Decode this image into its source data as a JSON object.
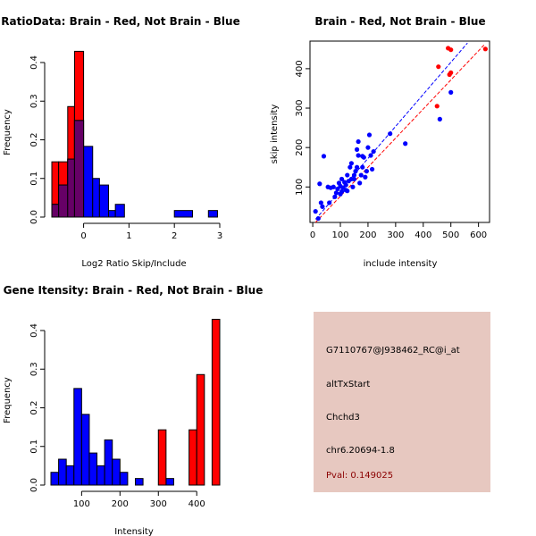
{
  "colors": {
    "red": "#ff0000",
    "blue": "#0000ff",
    "purple": "#660066",
    "panel": "#e7c8c0",
    "pval": "#8b0000"
  },
  "chart_data": [
    {
      "type": "histogram",
      "title": "RatioData: Brain - Red, Not Brain - Blue",
      "xlabel": "Log2 Ratio Skip/Include",
      "ylabel": "Frequency",
      "xlim": [
        -0.72,
        3.0
      ],
      "ylim": [
        0,
        0.43
      ],
      "xticks": [
        0,
        1,
        2,
        3
      ],
      "yticks": [
        0.0,
        0.1,
        0.2,
        0.3,
        0.4
      ],
      "series": [
        {
          "name": "Brain",
          "color": "red",
          "bins": [
            {
              "x0": -0.7,
              "x1": -0.55,
              "value": 0.143
            },
            {
              "x0": -0.55,
              "x1": -0.35,
              "value": 0.143
            },
            {
              "x0": -0.35,
              "x1": -0.2,
              "value": 0.286
            },
            {
              "x0": -0.2,
              "x1": 0.0,
              "value": 0.429
            }
          ]
        },
        {
          "name": "Not Brain",
          "color": "blue",
          "bins": [
            {
              "x0": -0.7,
              "x1": -0.55,
              "value": 0.033
            },
            {
              "x0": -0.55,
              "x1": -0.35,
              "value": 0.083
            },
            {
              "x0": -0.35,
              "x1": -0.2,
              "value": 0.15
            },
            {
              "x0": -0.2,
              "x1": 0.0,
              "value": 0.25
            },
            {
              "x0": 0.0,
              "x1": 0.2,
              "value": 0.183
            },
            {
              "x0": 0.2,
              "x1": 0.35,
              "value": 0.1
            },
            {
              "x0": 0.35,
              "x1": 0.55,
              "value": 0.083
            },
            {
              "x0": 0.55,
              "x1": 0.7,
              "value": 0.017
            },
            {
              "x0": 0.7,
              "x1": 0.9,
              "value": 0.033
            },
            {
              "x0": 2.0,
              "x1": 2.4,
              "value": 0.017
            },
            {
              "x0": 2.75,
              "x1": 2.95,
              "value": 0.017
            }
          ]
        }
      ]
    },
    {
      "type": "scatter",
      "title": "Brain - Red, Not Brain - Blue",
      "xlabel": "include intensity",
      "ylabel": "skip intensity",
      "xlim": [
        -10,
        640
      ],
      "ylim": [
        10,
        470
      ],
      "xticks": [
        0,
        100,
        200,
        300,
        400,
        500,
        600
      ],
      "yticks": [
        100,
        200,
        300,
        400
      ],
      "series": [
        {
          "name": "Not Brain",
          "color": "blue",
          "points": [
            [
              10,
              38
            ],
            [
              25,
              108
            ],
            [
              30,
              60
            ],
            [
              35,
              50
            ],
            [
              40,
              178
            ],
            [
              55,
              100
            ],
            [
              60,
              60
            ],
            [
              65,
              98
            ],
            [
              75,
              100
            ],
            [
              80,
              75
            ],
            [
              85,
              85
            ],
            [
              90,
              95
            ],
            [
              95,
              110
            ],
            [
              100,
              82
            ],
            [
              100,
              102
            ],
            [
              105,
              120
            ],
            [
              110,
              98
            ],
            [
              115,
              112
            ],
            [
              120,
              105
            ],
            [
              125,
              90
            ],
            [
              125,
              130
            ],
            [
              130,
              115
            ],
            [
              135,
              150
            ],
            [
              140,
              160
            ],
            [
              145,
              100
            ],
            [
              150,
              120
            ],
            [
              150,
              130
            ],
            [
              155,
              140
            ],
            [
              160,
              195
            ],
            [
              165,
              180
            ],
            [
              165,
              215
            ],
            [
              170,
              110
            ],
            [
              175,
              130
            ],
            [
              180,
              150
            ],
            [
              185,
              175
            ],
            [
              190,
              125
            ],
            [
              195,
              140
            ],
            [
              200,
              200
            ],
            [
              205,
              232
            ],
            [
              210,
              180
            ],
            [
              215,
              145
            ],
            [
              220,
              190
            ],
            [
              280,
              235
            ],
            [
              335,
              210
            ],
            [
              460,
              272
            ],
            [
              500,
              340
            ],
            [
              20,
              20
            ],
            [
              105,
              88
            ],
            [
              140,
              120
            ],
            [
              160,
              150
            ],
            [
              180,
              178
            ],
            [
              120,
              92
            ]
          ]
        },
        {
          "name": "Brain",
          "color": "red",
          "points": [
            [
              450,
              305
            ],
            [
              455,
              405
            ],
            [
              490,
              452
            ],
            [
              495,
              385
            ],
            [
              500,
              390
            ],
            [
              500,
              448
            ],
            [
              625,
              450
            ]
          ]
        }
      ],
      "fit_lines": [
        {
          "series": "Not Brain",
          "color": "blue",
          "x": [
            10,
            560
          ],
          "y": [
            18,
            465
          ]
        },
        {
          "series": "Brain",
          "color": "red",
          "x": [
            10,
            620
          ],
          "y": [
            10,
            460
          ]
        }
      ]
    },
    {
      "type": "histogram",
      "title": "Gene Itensity: Brain - Red, Not Brain - Blue",
      "xlabel": "Intensity",
      "ylabel": "Frequency",
      "xlim": [
        20,
        460
      ],
      "ylim": [
        0,
        0.43
      ],
      "xticks": [
        100,
        200,
        300,
        400
      ],
      "yticks": [
        0.0,
        0.1,
        0.2,
        0.3,
        0.4
      ],
      "series": [
        {
          "name": "Not Brain",
          "color": "blue",
          "bins": [
            {
              "x0": 20,
              "x1": 40,
              "value": 0.033
            },
            {
              "x0": 40,
              "x1": 60,
              "value": 0.067
            },
            {
              "x0": 60,
              "x1": 80,
              "value": 0.05
            },
            {
              "x0": 80,
              "x1": 100,
              "value": 0.25
            },
            {
              "x0": 100,
              "x1": 120,
              "value": 0.183
            },
            {
              "x0": 120,
              "x1": 140,
              "value": 0.083
            },
            {
              "x0": 140,
              "x1": 160,
              "value": 0.05
            },
            {
              "x0": 160,
              "x1": 180,
              "value": 0.117
            },
            {
              "x0": 180,
              "x1": 200,
              "value": 0.067
            },
            {
              "x0": 200,
              "x1": 220,
              "value": 0.033
            },
            {
              "x0": 240,
              "x1": 260,
              "value": 0.017
            },
            {
              "x0": 320,
              "x1": 340,
              "value": 0.017
            }
          ]
        },
        {
          "name": "Brain",
          "color": "red",
          "bins": [
            {
              "x0": 300,
              "x1": 320,
              "value": 0.143
            },
            {
              "x0": 380,
              "x1": 400,
              "value": 0.143
            },
            {
              "x0": 400,
              "x1": 420,
              "value": 0.286
            },
            {
              "x0": 440,
              "x1": 460,
              "value": 0.429
            }
          ]
        }
      ]
    }
  ],
  "info_panel": {
    "probe": "G7110767@J938462_RC@i_at",
    "event": "altTxStart",
    "gene": "Chchd3",
    "location": "chr6.20694-1.8",
    "pval": "Pval: 0.149025"
  }
}
